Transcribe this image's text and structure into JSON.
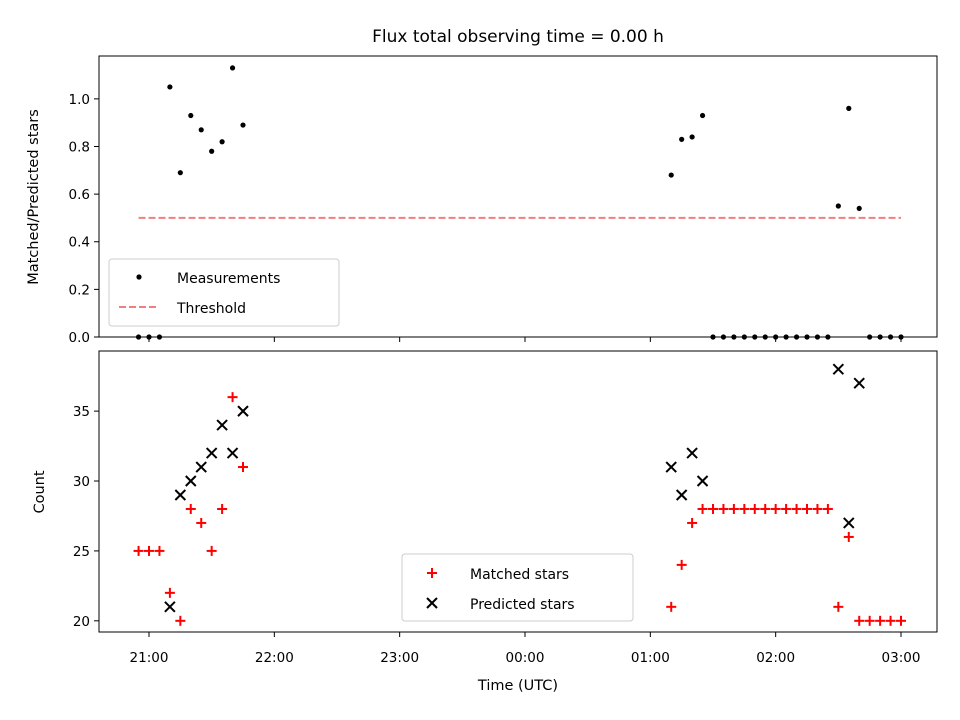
{
  "chart_data": [
    {
      "type": "scatter",
      "title": "Flux total observing time = 0.00 h",
      "xlabel": "",
      "ylabel": "Matched/Predicted stars",
      "ylim": [
        0,
        1.18
      ],
      "yticks": [
        "0.0",
        "0.2",
        "0.4",
        "0.6",
        "0.8",
        "1.0"
      ],
      "legend": "lower-left",
      "series": [
        {
          "name": "Measurements",
          "marker": "dot",
          "color": "#000000",
          "x": [
            "20:55",
            "21:00",
            "21:05",
            "21:10",
            "21:15",
            "21:20",
            "21:25",
            "21:30",
            "21:35",
            "21:40",
            "21:45",
            "01:10",
            "01:15",
            "01:20",
            "01:25",
            "01:30",
            "01:35",
            "01:40",
            "01:45",
            "01:50",
            "01:55",
            "02:00",
            "02:05",
            "02:10",
            "02:15",
            "02:20",
            "02:25",
            "02:30",
            "02:35",
            "02:40",
            "02:45",
            "02:50",
            "02:55",
            "03:00"
          ],
          "values": [
            0,
            0,
            0,
            1.05,
            0.69,
            0.93,
            0.87,
            0.78,
            0.82,
            1.13,
            0.89,
            0.68,
            0.83,
            0.84,
            0.93,
            0,
            0,
            0,
            0,
            0,
            0,
            0,
            0,
            0,
            0,
            0,
            0,
            0.55,
            0.96,
            0.54,
            0,
            0,
            0,
            0
          ]
        },
        {
          "name": "Threshold",
          "marker": "dashed-line",
          "color": "#f08080",
          "x": [
            "20:55",
            "03:00"
          ],
          "values": [
            0.5,
            0.5
          ]
        }
      ]
    },
    {
      "type": "scatter",
      "title": "",
      "xlabel": "Time (UTC)",
      "ylabel": "Count",
      "ylim": [
        19.2,
        39.3
      ],
      "yticks": [
        "20",
        "25",
        "30",
        "35"
      ],
      "xticks": [
        "21:00",
        "22:00",
        "23:00",
        "00:00",
        "01:00",
        "02:00",
        "03:00"
      ],
      "legend": "lower-center",
      "series": [
        {
          "name": "Matched stars",
          "marker": "plus",
          "color": "#ff0000",
          "x": [
            "20:55",
            "21:00",
            "21:05",
            "21:10",
            "21:15",
            "21:20",
            "21:25",
            "21:30",
            "21:35",
            "21:40",
            "21:45",
            "01:10",
            "01:15",
            "01:20",
            "01:25",
            "01:30",
            "01:35",
            "01:40",
            "01:45",
            "01:50",
            "01:55",
            "02:00",
            "02:05",
            "02:10",
            "02:15",
            "02:20",
            "02:25",
            "02:30",
            "02:35",
            "02:40",
            "02:45",
            "02:50",
            "02:55",
            "03:00"
          ],
          "values": [
            25,
            25,
            25,
            22,
            20,
            28,
            27,
            25,
            28,
            36,
            31,
            21,
            24,
            27,
            28,
            28,
            28,
            28,
            28,
            28,
            28,
            28,
            28,
            28,
            28,
            28,
            28,
            21,
            26,
            20,
            20,
            20,
            20,
            20
          ]
        },
        {
          "name": "Predicted stars",
          "marker": "cross",
          "color": "#000000",
          "x": [
            "21:10",
            "21:15",
            "21:20",
            "21:25",
            "21:30",
            "21:35",
            "21:40",
            "21:45",
            "01:10",
            "01:15",
            "01:20",
            "01:25",
            "02:30",
            "02:35",
            "02:40"
          ],
          "values": [
            21,
            29,
            30,
            31,
            32,
            34,
            32,
            35,
            31,
            29,
            32,
            30,
            38,
            27,
            37
          ]
        }
      ]
    }
  ]
}
